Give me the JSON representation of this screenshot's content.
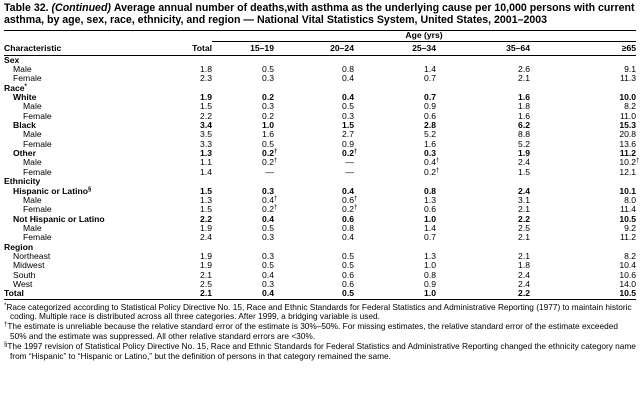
{
  "title": {
    "label": "Table 32.",
    "continued": "(Continued)",
    "text": "Average annual number of deaths,with asthma as the underlying cause per 10,000 persons with current asthma, by age, sex, race, ethnicity, and region — National Vital Statistics System, United States, 2001–2003"
  },
  "table": {
    "spanner": "Age (yrs)",
    "columns": [
      "Characteristic",
      "Total",
      "15–19",
      "20–24",
      "25–34",
      "35–64",
      "≥65"
    ],
    "rows": [
      {
        "label": "Sex",
        "style": "section"
      },
      {
        "label": "Male",
        "style": "item",
        "cells": [
          "1.8",
          "0.5",
          "0.8",
          "1.4",
          "2.6",
          "9.1"
        ]
      },
      {
        "label": "Female",
        "style": "item",
        "cells": [
          "2.3",
          "0.3",
          "0.4",
          "0.7",
          "2.1",
          "11.3"
        ]
      },
      {
        "label": {
          "text": "Race",
          "sup": "*"
        },
        "style": "section"
      },
      {
        "label": "White",
        "style": "group",
        "cells": [
          "1.9",
          "0.2",
          "0.4",
          "0.7",
          "1.6",
          "10.0"
        ]
      },
      {
        "label": "Male",
        "style": "sub",
        "cells": [
          "1.5",
          "0.3",
          "0.5",
          "0.9",
          "1.8",
          "8.2"
        ]
      },
      {
        "label": "Female",
        "style": "sub",
        "cells": [
          "2.2",
          "0.2",
          "0.3",
          "0.6",
          "1.6",
          "11.0"
        ]
      },
      {
        "label": "Black",
        "style": "group",
        "cells": [
          "3.4",
          "1.0",
          "1.5",
          "2.8",
          "6.2",
          "15.3"
        ]
      },
      {
        "label": "Male",
        "style": "sub",
        "cells": [
          "3.5",
          "1.6",
          "2.7",
          "5.2",
          "8.8",
          "20.8"
        ]
      },
      {
        "label": "Female",
        "style": "sub",
        "cells": [
          "3.3",
          "0.5",
          "0.9",
          "1.6",
          "5.2",
          "13.6"
        ]
      },
      {
        "label": "Other",
        "style": "group",
        "cells": [
          "1.3",
          {
            "text": "0.2",
            "sup": "†"
          },
          {
            "text": "0.2",
            "sup": "†"
          },
          "0.3",
          "1.9",
          "11.2"
        ]
      },
      {
        "label": "Male",
        "style": "sub",
        "cells": [
          "1.1",
          {
            "text": "0.2",
            "sup": "†"
          },
          "—",
          {
            "text": "0.4",
            "sup": "†"
          },
          "2.4",
          {
            "text": "10.2",
            "sup": "†"
          }
        ]
      },
      {
        "label": "Female",
        "style": "sub",
        "cells": [
          "1.4",
          "—",
          "—",
          {
            "text": "0.2",
            "sup": "†"
          },
          "1.5",
          "12.1"
        ]
      },
      {
        "label": "Ethnicity",
        "style": "section"
      },
      {
        "label": {
          "text": "Hispanic or Latino",
          "sup": "§"
        },
        "style": "group",
        "cells": [
          "1.5",
          "0.3",
          "0.4",
          "0.8",
          "2.4",
          "10.1"
        ]
      },
      {
        "label": "Male",
        "style": "sub",
        "cells": [
          "1.3",
          {
            "text": "0.4",
            "sup": "†"
          },
          {
            "text": "0.6",
            "sup": "†"
          },
          "1.3",
          "3.1",
          "8.0"
        ]
      },
      {
        "label": "Female",
        "style": "sub",
        "cells": [
          "1.5",
          {
            "text": "0.2",
            "sup": "†"
          },
          {
            "text": "0.2",
            "sup": "†"
          },
          "0.6",
          "2.1",
          "11.4"
        ]
      },
      {
        "label": "Not Hispanic or Latino",
        "style": "group",
        "cells": [
          "2.2",
          "0.4",
          "0.6",
          "1.0",
          "2.2",
          "10.5"
        ]
      },
      {
        "label": "Male",
        "style": "sub",
        "cells": [
          "1.9",
          "0.5",
          "0.8",
          "1.4",
          "2.5",
          "9.2"
        ]
      },
      {
        "label": "Female",
        "style": "sub",
        "cells": [
          "2.4",
          "0.3",
          "0.4",
          "0.7",
          "2.1",
          "11.2"
        ]
      },
      {
        "label": "Region",
        "style": "section"
      },
      {
        "label": "Northeast",
        "style": "item",
        "cells": [
          "1.9",
          "0.3",
          "0.5",
          "1.3",
          "2.1",
          "8.2"
        ]
      },
      {
        "label": "Midwest",
        "style": "item",
        "cells": [
          "1.9",
          "0.5",
          "0.5",
          "1.0",
          "1.8",
          "10.4"
        ]
      },
      {
        "label": "South",
        "style": "item",
        "cells": [
          "2.1",
          "0.4",
          "0.6",
          "0.8",
          "2.4",
          "10.6"
        ]
      },
      {
        "label": "West",
        "style": "item",
        "cells": [
          "2.5",
          "0.3",
          "0.6",
          "0.9",
          "2.4",
          "14.0"
        ]
      },
      {
        "label": "Total",
        "style": "total",
        "cells": [
          "2.1",
          "0.4",
          "0.5",
          "1.0",
          "2.2",
          "10.5"
        ]
      }
    ]
  },
  "footnotes": [
    {
      "mark": "*",
      "text": "Race categorized according to Statistical Policy Directive No. 15, Race and Ethnic Standards for Federal Statistics and Administrative Reporting (1977) to maintain historic coding. Multiple race is distributed across all three categories. After 1999, a bridging variable is used."
    },
    {
      "mark": "†",
      "text": "The estimate is unreliable because the relative standard error of the estimate is 30%–50%. For missing estimates, the relative standard error of the estimate exceeded 50% and the estimate was suppressed. All other relative standard errors are <30%."
    },
    {
      "mark": "§",
      "text": "The 1997 revision of Statistical Policy Directive No. 15, Race and Ethnic Standards for Federal Statistics and Administrative Reporting changed the ethnicity category name from “Hispanic” to “Hispanic or Latino,” but the definition of persons in that category remained the same."
    }
  ]
}
